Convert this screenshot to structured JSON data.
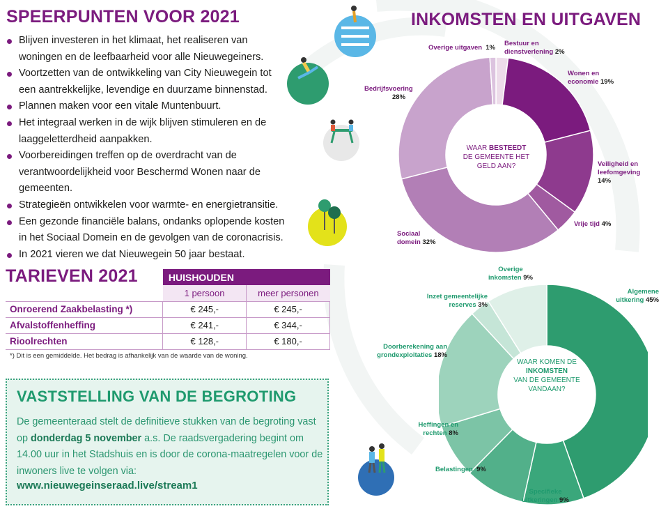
{
  "left": {
    "title": "SPEERPUNTEN VOOR 2021",
    "bullets": [
      "Blijven investeren in het klimaat, het realiseren van woningen en de leefbaarheid voor alle Nieuwegeiners.",
      "Voortzetten van de ontwikkeling van City Nieuwegein tot een aantrekkelijke, levendige en duurzame binnenstad.",
      "Plannen maken voor een vitale Muntenbuurt.",
      "Het integraal werken in de wijk blijven stimuleren en de laaggeletterdheid aanpakken.",
      "Voorbereidingen treffen op de overdracht van de verantwoordelijkheid voor Beschermd Wonen naar de gemeenten.",
      "Strategieën ontwikkelen voor warmte- en energietransitie.",
      "Een gezonde financiële balans, ondanks oplopende kosten in het Sociaal Domein en de gevolgen van de coronacrisis.",
      "In 2021 vieren we dat Nieuwegein 50 jaar bestaat."
    ]
  },
  "tarieven": {
    "title": "TARIEVEN 2021",
    "group_header": "HUISHOUDEN",
    "col1": "1 persoon",
    "col2": "meer personen",
    "rows": [
      {
        "label": "Onroerend Zaakbelasting *)",
        "v1": "€ 245,-",
        "v2": "€ 245,-"
      },
      {
        "label": "Afvalstoffenheffing",
        "v1": "€ 241,-",
        "v2": "€ 344,-"
      },
      {
        "label": "Rioolrechten",
        "v1": "€ 128,-",
        "v2": "€ 180,-"
      }
    ],
    "footnote": "*) Dit is een gemiddelde. Het bedrag is afhankelijk van de waarde van de woning."
  },
  "vaststelling": {
    "title": "VASTSTELLING VAN DE BEGROTING",
    "text_pre": "De gemeenteraad stelt de definitieve stukken van de begroting vast op ",
    "text_bold": "donderdag 5 november",
    "text_post": " a.s. De raadsvergadering begint om 14.00 uur in het Stadshuis en is door de corona-maatregelen voor de inwoners live te volgen via:",
    "url": "www.nieuwegeinseraad.live/stream1"
  },
  "right_title": "INKOMSTEN EN UITGAVEN",
  "chart_data": [
    {
      "type": "pie",
      "variant": "donut",
      "center_text": {
        "pre": "WAAR ",
        "bold": "BESTEEDT",
        "post": "DE GEMEENTE HET GELD AAN?"
      },
      "slices": [
        {
          "name": "Bestuur en dienstverlening",
          "value": 2,
          "label": "2%",
          "color": "#eddcea"
        },
        {
          "name": "Wonen en economie",
          "value": 19,
          "label": "19%",
          "color": "#7b1b7e"
        },
        {
          "name": "Veiligheid en leefomgeving",
          "value": 14,
          "label": "14%",
          "color": "#8e3a8e"
        },
        {
          "name": "Vrije tijd",
          "value": 4,
          "label": "4%",
          "color": "#a05aa0"
        },
        {
          "name": "Sociaal domein",
          "value": 32,
          "label": "32%",
          "color": "#b27fb6"
        },
        {
          "name": "Bedrijfsvoering",
          "value": 28,
          "label": "28%",
          "color": "#c8a3cc"
        },
        {
          "name": "Overige uitgaven",
          "value": 1,
          "label": "1%",
          "color": "#dcc3df"
        }
      ]
    },
    {
      "type": "pie",
      "variant": "donut",
      "center_text": {
        "pre": "WAAR KOMEN DE ",
        "bold": "INKOMSTEN",
        "post": "VAN DE GEMEENTE VANDAAN?"
      },
      "slices": [
        {
          "name": "Algemene uitkering",
          "value": 45,
          "label": "45%",
          "color": "#2e9c6f"
        },
        {
          "name": "Specifieke uitkeringen",
          "value": 9,
          "label": "9%",
          "color": "#3aa77b"
        },
        {
          "name": "Belastingen",
          "value": 9,
          "label": "9%",
          "color": "#52b08a"
        },
        {
          "name": "Heffingen en rechten",
          "value": 8,
          "label": "8%",
          "color": "#7cc4a6"
        },
        {
          "name": "Doorberekening aan grondexploitaties",
          "value": 18,
          "label": "18%",
          "color": "#9dd3bc"
        },
        {
          "name": "Inzet gemeentelijke reserves",
          "value": 3,
          "label": "3%",
          "color": "#c5e5d7"
        },
        {
          "name": "Overige inkomsten",
          "value": 9,
          "label": "9%",
          "color": "#dff0e8"
        }
      ]
    }
  ]
}
